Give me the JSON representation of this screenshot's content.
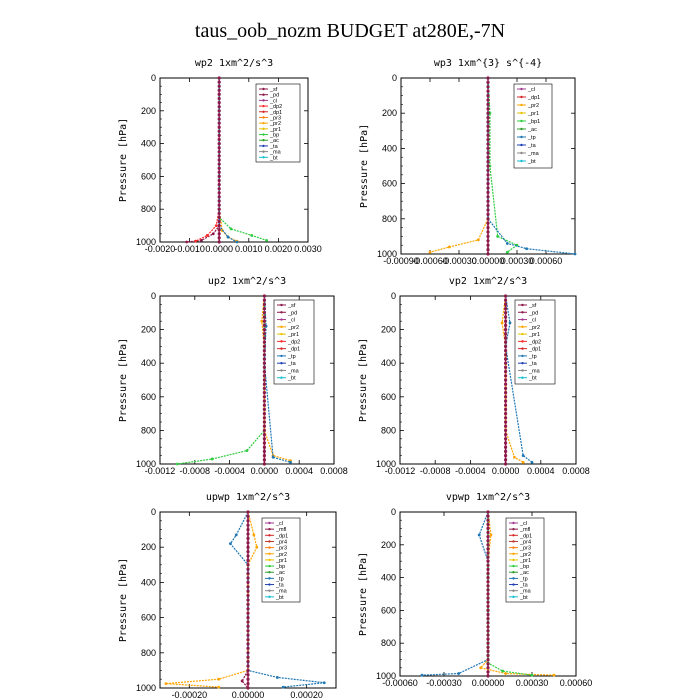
{
  "page": {
    "title": "taus_oob_nozm  BUDGET at280E,-7N"
  },
  "chart_data": [
    {
      "type": "line",
      "title": "wp2  1xm^2/s^3",
      "ylabel": "Pressure [hPa]",
      "xlim": [
        -0.002,
        0.003
      ],
      "ylim": [
        1000,
        0
      ],
      "xticks": [
        "-0.0020",
        "-0.0010",
        "0.0000",
        "0.0010",
        "0.0020",
        "0.0030"
      ],
      "yticks": [
        "0",
        "200",
        "400",
        "600",
        "800",
        "1000"
      ],
      "legend": [
        "_sf",
        "_pd",
        "_cl",
        "_dp2",
        "_dp1",
        "_pr3",
        "_pr2",
        "_pr1",
        "_bp",
        "_ac",
        "_ta",
        "_ma",
        "_bt"
      ],
      "series": [
        {
          "name": "_pd",
          "color": "#8b1a4a",
          "values": [
            [
              0,
              0
            ],
            [
              0,
              100
            ],
            [
              0,
              200
            ],
            [
              0,
              400
            ],
            [
              0,
              600
            ],
            [
              0,
              800
            ],
            [
              0,
              900
            ],
            [
              -0.0002,
              950
            ],
            [
              -0.0006,
              990
            ],
            [
              -0.0011,
              1000
            ]
          ]
        },
        {
          "name": "_dp2",
          "color": "#ff2a2a",
          "values": [
            [
              0,
              0
            ],
            [
              0,
              400
            ],
            [
              0,
              800
            ],
            [
              -0.0001,
              900
            ],
            [
              -0.0004,
              960
            ],
            [
              -0.0008,
              995
            ]
          ]
        },
        {
          "name": "_pr3",
          "color": "#ffa500",
          "values": [
            [
              0,
              0
            ],
            [
              0,
              800
            ],
            [
              0.0001,
              930
            ],
            [
              0.0003,
              970
            ],
            [
              0.0006,
              995
            ]
          ]
        },
        {
          "name": "_bp",
          "color": "#2ecc40",
          "values": [
            [
              0,
              0
            ],
            [
              0,
              850
            ],
            [
              0.0004,
              920
            ],
            [
              0.0011,
              960
            ],
            [
              0.0016,
              990
            ]
          ]
        },
        {
          "name": "_ac",
          "color": "#1f77b4",
          "values": [
            [
              0,
              0
            ],
            [
              0,
              900
            ],
            [
              0.0003,
              970
            ],
            [
              0.0006,
              1000
            ]
          ]
        }
      ]
    },
    {
      "type": "line",
      "title": "wp3  1xm^{3} s^{-4}",
      "ylabel": "Pressure [hPa]",
      "xlim": [
        -0.0009,
        0.0009
      ],
      "ylim": [
        1000,
        0
      ],
      "xticks": [
        "-0.00090",
        "-0.00060",
        "-0.00030",
        "0.00000",
        "0.00030",
        "0.00060"
      ],
      "yticks": [
        "0",
        "200",
        "400",
        "600",
        "800",
        "1000"
      ],
      "legend": [
        "_cl",
        "_dp1",
        "_pr2",
        "_pr1",
        "_bp1",
        "_ac",
        "_tp",
        "_ta",
        "_ma",
        "_bt"
      ],
      "series": [
        {
          "name": "_dp1",
          "color": "#8b1a4a",
          "values": [
            [
              0,
              0
            ],
            [
              0,
              200
            ],
            [
              0,
              600
            ],
            [
              0,
              900
            ],
            [
              0,
              1000
            ]
          ]
        },
        {
          "name": "_pr2",
          "color": "#ffa500",
          "values": [
            [
              0,
              0
            ],
            [
              0,
              800
            ],
            [
              -0.0001,
              920
            ],
            [
              -0.0004,
              960
            ],
            [
              -0.0006,
              990
            ]
          ]
        },
        {
          "name": "_bp1",
          "color": "#2ecc40",
          "values": [
            [
              0,
              0
            ],
            [
              2e-05,
              200
            ],
            [
              2e-05,
              500
            ],
            [
              0.0001,
              900
            ],
            [
              0.0003,
              950
            ],
            [
              0.0002,
              990
            ]
          ]
        },
        {
          "name": "_tp",
          "color": "#1f77b4",
          "values": [
            [
              0,
              0
            ],
            [
              0,
              800
            ],
            [
              0.0002,
              940
            ],
            [
              0.0004,
              970
            ],
            [
              0.0009,
              1000
            ]
          ]
        }
      ]
    },
    {
      "type": "line",
      "title": "up2  1xm^2/s^3",
      "ylabel": "Pressure [hPa]",
      "xlim": [
        -0.0012,
        0.0008
      ],
      "ylim": [
        1000,
        0
      ],
      "xticks": [
        "-0.0012",
        "-0.0008",
        "-0.0004",
        "0.0000",
        "0.0004",
        "0.0008"
      ],
      "yticks": [
        "0",
        "200",
        "400",
        "600",
        "800",
        "1000"
      ],
      "legend": [
        "_sf",
        "_pd",
        "_cl",
        "_pr2",
        "_pr1",
        "_dp2",
        "_dp1",
        "_tp",
        "_ta",
        "_ma",
        "_bt"
      ],
      "series": [
        {
          "name": "_pd",
          "color": "#8b1a4a",
          "values": [
            [
              0,
              0
            ],
            [
              0,
              200
            ],
            [
              0,
              600
            ],
            [
              0,
              1000
            ]
          ]
        },
        {
          "name": "_dp2",
          "color": "#2ecc40",
          "values": [
            [
              0,
              0
            ],
            [
              0,
              800
            ],
            [
              -0.0002,
              920
            ],
            [
              -0.0006,
              970
            ],
            [
              -0.001,
              1000
            ]
          ]
        },
        {
          "name": "_pr2",
          "color": "#ffa500",
          "values": [
            [
              0,
              0
            ],
            [
              -3e-05,
              150
            ],
            [
              0,
              300
            ],
            [
              0,
              800
            ],
            [
              0.0001,
              950
            ],
            [
              0.0003,
              980
            ]
          ]
        },
        {
          "name": "_tp",
          "color": "#1f77b4",
          "values": [
            [
              0,
              0
            ],
            [
              2e-05,
              180
            ],
            [
              0,
              400
            ],
            [
              0.0001,
              960
            ],
            [
              0.0003,
              990
            ]
          ]
        }
      ]
    },
    {
      "type": "line",
      "title": "vp2  1xm^2/s^3",
      "ylabel": "Pressure [hPa]",
      "xlim": [
        -0.0012,
        0.0008
      ],
      "ylim": [
        1000,
        0
      ],
      "xticks": [
        "-0.0012",
        "-0.0008",
        "-0.0004",
        "0.0000",
        "0.0004",
        "0.0008"
      ],
      "yticks": [
        "0",
        "200",
        "400",
        "600",
        "800",
        "1000"
      ],
      "legend": [
        "_sf",
        "_pd",
        "_cl",
        "_pr2",
        "_pr1",
        "_dp2",
        "_dp1",
        "_tp",
        "_ta",
        "_ma",
        "_bt"
      ],
      "series": [
        {
          "name": "_pd",
          "color": "#8b1a4a",
          "values": [
            [
              0,
              0
            ],
            [
              0,
              200
            ],
            [
              0,
              600
            ],
            [
              0,
              1000
            ]
          ]
        },
        {
          "name": "_pr2",
          "color": "#ffa500",
          "values": [
            [
              0,
              0
            ],
            [
              -4e-05,
              160
            ],
            [
              0,
              300
            ],
            [
              0,
              800
            ],
            [
              0.0001,
              960
            ],
            [
              0.0002,
              990
            ]
          ]
        },
        {
          "name": "_tp",
          "color": "#1f77b4",
          "values": [
            [
              0,
              0
            ],
            [
              5e-05,
              160
            ],
            [
              0,
              300
            ],
            [
              0.0002,
              950
            ],
            [
              0.0003,
              990
            ]
          ]
        }
      ]
    },
    {
      "type": "line",
      "title": "upwp  1xm^2/s^3",
      "ylabel": "Pressure [hPa]",
      "xlim": [
        -0.0003,
        0.0003
      ],
      "ylim": [
        1000,
        0
      ],
      "xticks": [
        "-0.00020",
        "0.00000",
        "0.00020"
      ],
      "yticks": [
        "0",
        "200",
        "400",
        "600",
        "800",
        "1000"
      ],
      "legend": [
        "_cl",
        "_mfl",
        "_dp1",
        "_pr4",
        "_pr3",
        "_pr2",
        "_pr1",
        "_bp",
        "_ac",
        "_tp",
        "_ta",
        "_ma",
        "_bt"
      ],
      "series": [
        {
          "name": "_mfl",
          "color": "#8b1a4a",
          "values": [
            [
              0,
              0
            ],
            [
              0,
              200
            ],
            [
              0,
              600
            ],
            [
              0,
              900
            ],
            [
              -2e-05,
              960
            ],
            [
              0,
              1000
            ]
          ]
        },
        {
          "name": "_pr2",
          "color": "#ffa500",
          "values": [
            [
              0,
              0
            ],
            [
              2e-05,
              130
            ],
            [
              3e-05,
              200
            ],
            [
              0,
              300
            ],
            [
              0,
              900
            ],
            [
              -0.0001,
              950
            ],
            [
              -0.00028,
              975
            ],
            [
              -0.0001,
              995
            ]
          ]
        },
        {
          "name": "_tp",
          "color": "#1f77b4",
          "values": [
            [
              0,
              0
            ],
            [
              -4e-05,
              130
            ],
            [
              -6e-05,
              180
            ],
            [
              0,
              300
            ],
            [
              0,
              900
            ],
            [
              0.0001,
              940
            ],
            [
              0.00026,
              970
            ],
            [
              0.00012,
              995
            ]
          ]
        }
      ]
    },
    {
      "type": "line",
      "title": "vpwp  1xm^2/s^3",
      "ylabel": "Pressure [hPa]",
      "xlim": [
        -0.0006,
        0.0006
      ],
      "ylim": [
        1000,
        0
      ],
      "xticks": [
        "-0.00060",
        "-0.00030",
        "0.00000",
        "0.00030",
        "0.00060"
      ],
      "yticks": [
        "0",
        "200",
        "400",
        "600",
        "800",
        "1000"
      ],
      "legend": [
        "_cl",
        "_mfl",
        "_dp1",
        "_pr4",
        "_pr3",
        "_pr2",
        "_pr1",
        "_bp",
        "_ac",
        "_tp",
        "_ta",
        "_ma",
        "_bt"
      ],
      "series": [
        {
          "name": "_mfl",
          "color": "#8b1a4a",
          "values": [
            [
              0,
              0
            ],
            [
              0,
              200
            ],
            [
              0,
              600
            ],
            [
              0,
              1000
            ]
          ]
        },
        {
          "name": "_pr2",
          "color": "#ffa500",
          "values": [
            [
              0,
              0
            ],
            [
              2e-05,
              140
            ],
            [
              0,
              300
            ],
            [
              0,
              900
            ],
            [
              -5e-05,
              950
            ],
            [
              0.00012,
              985
            ],
            [
              0.00045,
              995
            ]
          ]
        },
        {
          "name": "_tp",
          "color": "#1f77b4",
          "values": [
            [
              0,
              0
            ],
            [
              -6e-05,
              140
            ],
            [
              0,
              300
            ],
            [
              0,
              900
            ],
            [
              -0.0002,
              985
            ],
            [
              -0.00045,
              995
            ]
          ]
        },
        {
          "name": "_bp",
          "color": "#2ecc40",
          "values": [
            [
              0,
              0
            ],
            [
              0,
              920
            ],
            [
              0.0001,
              970
            ],
            [
              0.0003,
              995
            ]
          ]
        }
      ]
    }
  ]
}
